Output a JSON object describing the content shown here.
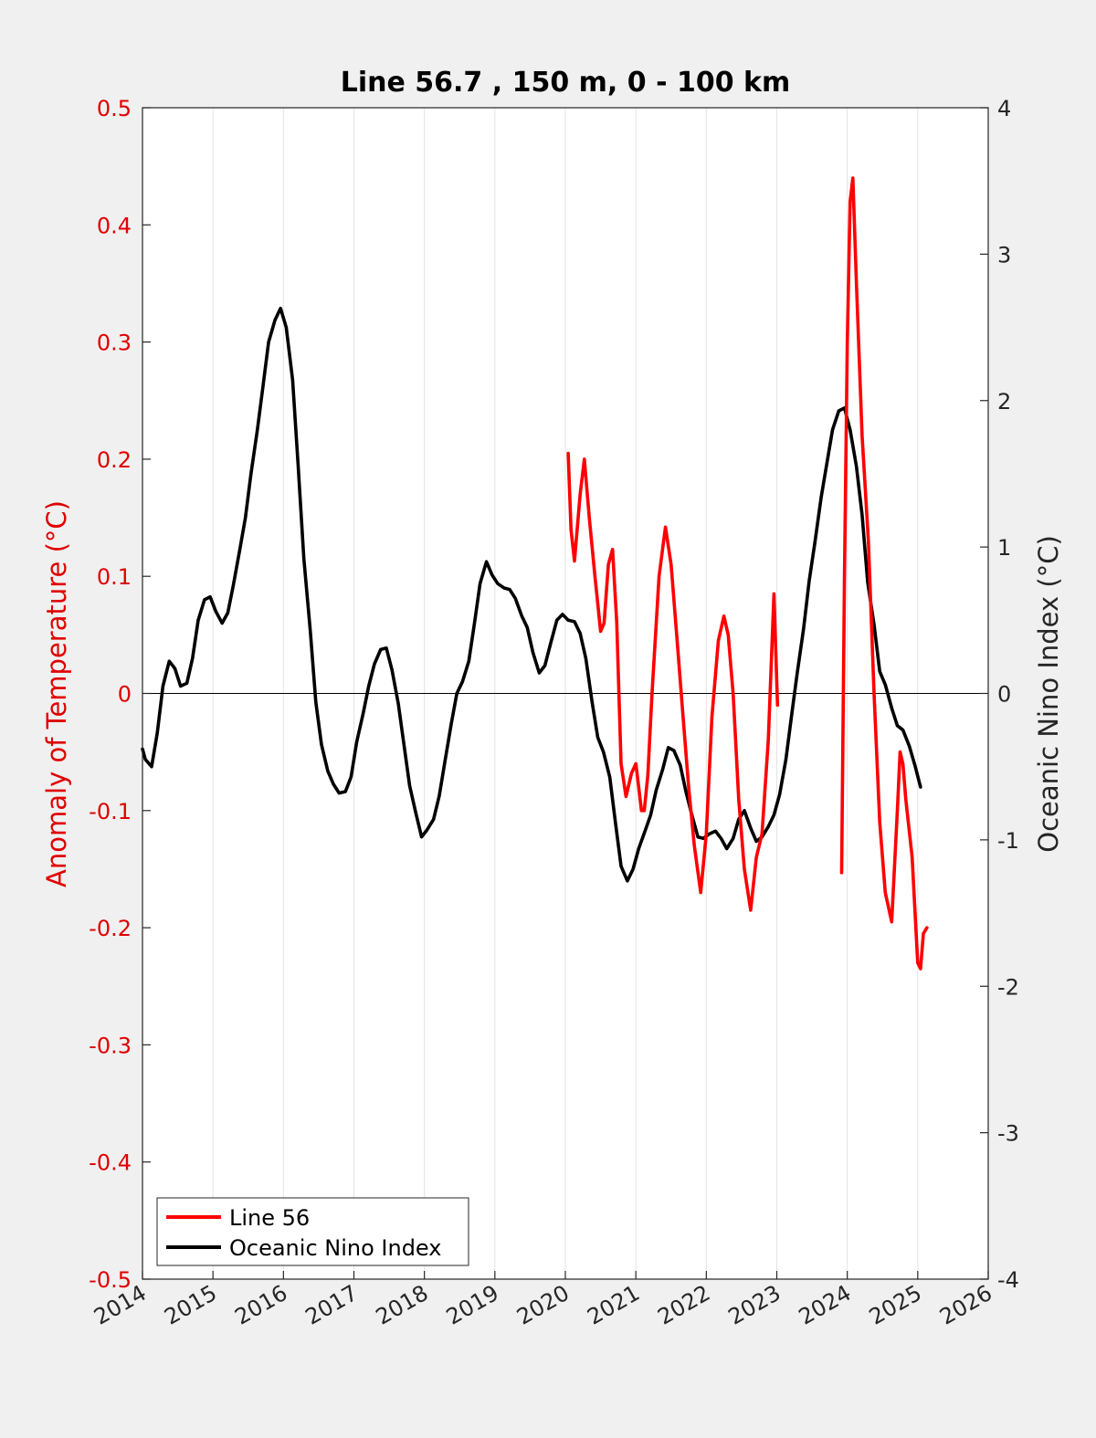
{
  "chart_data": {
    "type": "line",
    "title": "Line 56.7 , 150 m, 0 - 100 km",
    "xlabel": "",
    "ylabel_left": "Anomaly of Temperature (°C)",
    "ylabel_right": "Oceanic Nino Index (°C)",
    "xlim": [
      2014,
      2026
    ],
    "ylim_left": [
      -0.5,
      0.5
    ],
    "ylim_right": [
      -4,
      4
    ],
    "x_ticks": [
      "2014",
      "2015",
      "2016",
      "2017",
      "2018",
      "2019",
      "2020",
      "2021",
      "2022",
      "2023",
      "2024",
      "2025",
      "2026"
    ],
    "y_ticks_left": [
      "-0.5",
      "-0.4",
      "-0.3",
      "-0.2",
      "-0.1",
      "0",
      "0.1",
      "0.2",
      "0.3",
      "0.4",
      "0.5"
    ],
    "y_ticks_right": [
      "-4",
      "-3",
      "-2",
      "-1",
      "0",
      "1",
      "2",
      "3",
      "4"
    ],
    "grid": "vertical",
    "zero_line": true,
    "legend_position": "bottom-left",
    "series": [
      {
        "name": "Line 56",
        "axis": "left",
        "color": "#ff0000",
        "segments": [
          {
            "x": [
              2020.04,
              2020.08,
              2020.13,
              2020.21,
              2020.27,
              2020.34,
              2020.42,
              2020.5,
              2020.55,
              2020.61,
              2020.67,
              2020.73,
              2020.79,
              2020.86,
              2020.94,
              2021.0,
              2021.04,
              2021.08,
              2021.12,
              2021.17,
              2021.23,
              2021.33,
              2021.42,
              2021.5,
              2021.58,
              2021.67,
              2021.75,
              2021.83,
              2021.92,
              2022.0,
              2022.08,
              2022.17,
              2022.25,
              2022.31,
              2022.38,
              2022.46,
              2022.54,
              2022.63,
              2022.71,
              2022.79,
              2022.88,
              2022.96,
              2023.01
            ],
            "y": [
              0.205,
              0.14,
              0.113,
              0.17,
              0.2,
              0.15,
              0.1,
              0.053,
              0.06,
              0.11,
              0.123,
              0.06,
              -0.06,
              -0.088,
              -0.068,
              -0.06,
              -0.08,
              -0.1,
              -0.1,
              -0.07,
              0.0,
              0.1,
              0.142,
              0.11,
              0.05,
              -0.02,
              -0.08,
              -0.13,
              -0.17,
              -0.12,
              -0.02,
              0.045,
              0.066,
              0.05,
              0.0,
              -0.09,
              -0.15,
              -0.185,
              -0.14,
              -0.12,
              -0.04,
              0.085,
              -0.01
            ]
          },
          {
            "x": [
              2023.92,
              2023.96,
              2024.0,
              2024.04,
              2024.08,
              2024.13,
              2024.21,
              2024.3,
              2024.38,
              2024.46,
              2024.54,
              2024.63,
              2024.71,
              2024.75,
              2024.79,
              2024.83,
              2024.92,
              2025.0,
              2025.04,
              2025.08,
              2025.13
            ],
            "y": [
              -0.153,
              0.1,
              0.3,
              0.42,
              0.44,
              0.35,
              0.22,
              0.13,
              0.0,
              -0.11,
              -0.17,
              -0.195,
              -0.1,
              -0.05,
              -0.06,
              -0.09,
              -0.14,
              -0.23,
              -0.235,
              -0.205,
              -0.2
            ]
          }
        ]
      },
      {
        "name": "Oceanic Nino Index",
        "axis": "right",
        "color": "#000000",
        "x": [
          2014.0,
          2014.04,
          2014.13,
          2014.21,
          2014.29,
          2014.38,
          2014.46,
          2014.54,
          2014.63,
          2014.71,
          2014.79,
          2014.88,
          2014.96,
          2015.04,
          2015.13,
          2015.21,
          2015.29,
          2015.38,
          2015.46,
          2015.54,
          2015.63,
          2015.71,
          2015.79,
          2015.88,
          2015.96,
          2016.04,
          2016.13,
          2016.21,
          2016.29,
          2016.38,
          2016.46,
          2016.54,
          2016.63,
          2016.71,
          2016.79,
          2016.88,
          2016.96,
          2017.04,
          2017.13,
          2017.21,
          2017.29,
          2017.38,
          2017.46,
          2017.54,
          2017.63,
          2017.71,
          2017.79,
          2017.88,
          2017.96,
          2018.04,
          2018.13,
          2018.21,
          2018.29,
          2018.38,
          2018.46,
          2018.54,
          2018.63,
          2018.71,
          2018.79,
          2018.88,
          2018.96,
          2019.04,
          2019.13,
          2019.21,
          2019.29,
          2019.38,
          2019.46,
          2019.54,
          2019.63,
          2019.71,
          2019.79,
          2019.88,
          2019.96,
          2020.04,
          2020.13,
          2020.21,
          2020.29,
          2020.38,
          2020.46,
          2020.54,
          2020.63,
          2020.71,
          2020.79,
          2020.88,
          2020.96,
          2021.04,
          2021.13,
          2021.21,
          2021.29,
          2021.38,
          2021.46,
          2021.54,
          2021.63,
          2021.71,
          2021.79,
          2021.88,
          2021.96,
          2022.04,
          2022.13,
          2022.21,
          2022.29,
          2022.38,
          2022.46,
          2022.54,
          2022.63,
          2022.71,
          2022.79,
          2022.88,
          2022.96,
          2023.04,
          2023.13,
          2023.21,
          2023.29,
          2023.38,
          2023.46,
          2023.54,
          2023.63,
          2023.71,
          2023.79,
          2023.88,
          2023.96,
          2024.04,
          2024.13,
          2024.21,
          2024.29,
          2024.38,
          2024.46,
          2024.54,
          2024.63,
          2024.71,
          2024.79,
          2024.88,
          2024.96,
          2025.04
        ],
        "y": [
          -0.38,
          -0.45,
          -0.5,
          -0.27,
          0.05,
          0.22,
          0.17,
          0.05,
          0.07,
          0.24,
          0.5,
          0.64,
          0.66,
          0.56,
          0.48,
          0.55,
          0.74,
          0.98,
          1.2,
          1.5,
          1.8,
          2.1,
          2.4,
          2.55,
          2.63,
          2.5,
          2.14,
          1.55,
          0.92,
          0.43,
          -0.06,
          -0.35,
          -0.53,
          -0.62,
          -0.68,
          -0.67,
          -0.57,
          -0.33,
          -0.14,
          0.05,
          0.2,
          0.3,
          0.31,
          0.16,
          -0.07,
          -0.35,
          -0.63,
          -0.82,
          -0.98,
          -0.93,
          -0.86,
          -0.7,
          -0.47,
          -0.21,
          0.0,
          0.08,
          0.22,
          0.48,
          0.75,
          0.9,
          0.81,
          0.75,
          0.72,
          0.71,
          0.65,
          0.53,
          0.45,
          0.28,
          0.14,
          0.19,
          0.34,
          0.5,
          0.54,
          0.5,
          0.49,
          0.41,
          0.24,
          -0.06,
          -0.3,
          -0.4,
          -0.57,
          -0.88,
          -1.18,
          -1.28,
          -1.2,
          -1.06,
          -0.94,
          -0.83,
          -0.66,
          -0.52,
          -0.37,
          -0.39,
          -0.49,
          -0.67,
          -0.82,
          -0.98,
          -0.99,
          -0.96,
          -0.94,
          -0.99,
          -1.06,
          -0.99,
          -0.86,
          -0.8,
          -0.92,
          -1.01,
          -0.98,
          -0.91,
          -0.83,
          -0.69,
          -0.45,
          -0.15,
          0.14,
          0.44,
          0.77,
          1.03,
          1.34,
          1.57,
          1.8,
          1.93,
          1.95,
          1.8,
          1.55,
          1.22,
          0.76,
          0.47,
          0.15,
          0.06,
          -0.1,
          -0.22,
          -0.25,
          -0.36,
          -0.49,
          -0.64
        ]
      }
    ]
  }
}
